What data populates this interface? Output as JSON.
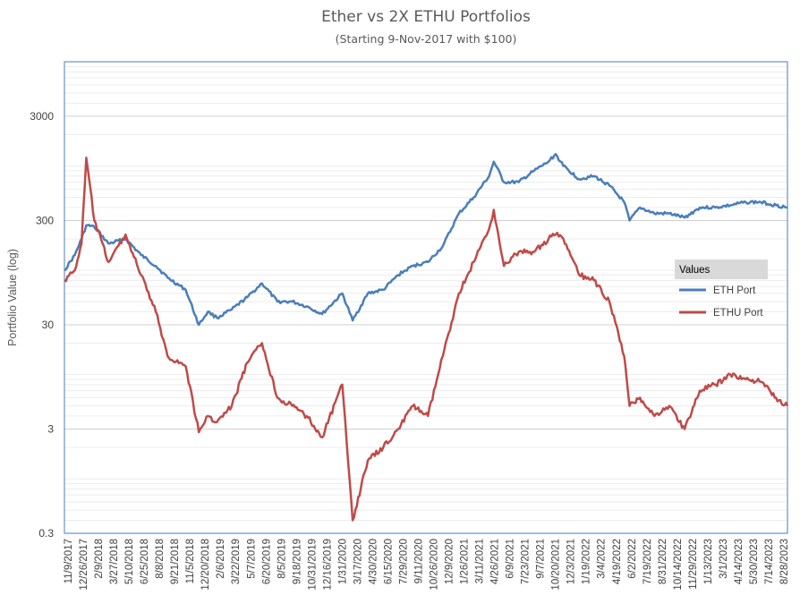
{
  "chart_data": {
    "type": "line",
    "title": "Ether vs 2X ETHU Portfolios",
    "subtitle": "(Starting 9-Nov-2017 with $100)",
    "ylabel": "Portfolio Value (log)",
    "xlabel": "",
    "y_scale": "log",
    "ylim": [
      0.3,
      10000
    ],
    "y_ticks": [
      "3000",
      "300",
      "30",
      "3",
      "0.3"
    ],
    "grid": "horizontal",
    "legend": {
      "title": "Values",
      "position": "right"
    },
    "x_ticks": [
      "11/9/2017",
      "12/26/2017",
      "2/9/2018",
      "3/27/2018",
      "5/10/2018",
      "6/25/2018",
      "8/8/2018",
      "9/21/2018",
      "11/5/2018",
      "12/20/2018",
      "2/6/2019",
      "3/22/2019",
      "5/7/2019",
      "6/20/2019",
      "8/5/2019",
      "9/18/2019",
      "10/31/2019",
      "12/16/2019",
      "1/31/2020",
      "3/17/2020",
      "4/30/2020",
      "6/15/2020",
      "7/29/2020",
      "9/11/2020",
      "10/26/2020",
      "12/9/2020",
      "1/26/2021",
      "3/11/2021",
      "4/26/2021",
      "6/9/2021",
      "7/23/2021",
      "9/7/2021",
      "10/20/2021",
      "12/3/2021",
      "1/19/2022",
      "3/4/2022",
      "4/19/2022",
      "6/2/2022",
      "7/19/2022",
      "8/31/2022",
      "10/14/2022",
      "11/29/2022",
      "1/13/2023",
      "3/1/2023",
      "4/14/2023",
      "5/30/2023",
      "7/14/2023",
      "8/28/2023"
    ],
    "x": [
      "2017-11-09",
      "2017-12-10",
      "2017-12-30",
      "2018-01-13",
      "2018-02-06",
      "2018-03-20",
      "2018-05-10",
      "2018-06-25",
      "2018-08-08",
      "2018-09-12",
      "2018-11-05",
      "2018-12-14",
      "2019-01-10",
      "2019-02-06",
      "2019-03-22",
      "2019-05-07",
      "2019-06-20",
      "2019-08-05",
      "2019-09-18",
      "2019-10-31",
      "2019-12-16",
      "2020-02-14",
      "2020-03-16",
      "2020-04-30",
      "2020-06-15",
      "2020-07-29",
      "2020-09-11",
      "2020-10-26",
      "2020-12-09",
      "2021-01-26",
      "2021-03-11",
      "2021-04-26",
      "2021-05-10",
      "2021-06-09",
      "2021-07-23",
      "2021-09-07",
      "2021-10-20",
      "2021-11-10",
      "2021-12-03",
      "2022-01-19",
      "2022-03-04",
      "2022-04-19",
      "2022-06-02",
      "2022-06-18",
      "2022-07-19",
      "2022-08-31",
      "2022-10-14",
      "2022-11-29",
      "2023-01-13",
      "2023-03-01",
      "2023-04-14",
      "2023-05-30",
      "2023-07-14",
      "2023-08-28",
      "2023-10-01"
    ],
    "series": [
      {
        "name": "ETH Port",
        "color": "#4a7ebb",
        "values": [
          100,
          140,
          200,
          270,
          260,
          180,
          200,
          140,
          110,
          85,
          65,
          30,
          40,
          35,
          42,
          55,
          75,
          50,
          50,
          45,
          38,
          60,
          33,
          60,
          65,
          90,
          110,
          120,
          170,
          350,
          500,
          800,
          1100,
          700,
          700,
          900,
          1100,
          1300,
          1000,
          750,
          800,
          650,
          450,
          300,
          400,
          350,
          350,
          320,
          400,
          400,
          420,
          450,
          450,
          420,
          400
        ]
      },
      {
        "name": "ETHU Port",
        "color": "#be4b48",
        "values": [
          80,
          100,
          180,
          1200,
          300,
          120,
          220,
          90,
          40,
          15,
          12,
          2.8,
          4,
          3.5,
          5,
          13,
          20,
          6,
          5,
          4,
          2.5,
          8,
          0.4,
          1.5,
          2,
          3,
          5,
          4,
          15,
          60,
          120,
          250,
          380,
          110,
          150,
          150,
          200,
          220,
          200,
          90,
          80,
          50,
          15,
          5,
          6,
          4,
          5,
          3,
          7,
          8,
          10,
          9,
          8.5,
          6,
          5
        ]
      }
    ]
  }
}
